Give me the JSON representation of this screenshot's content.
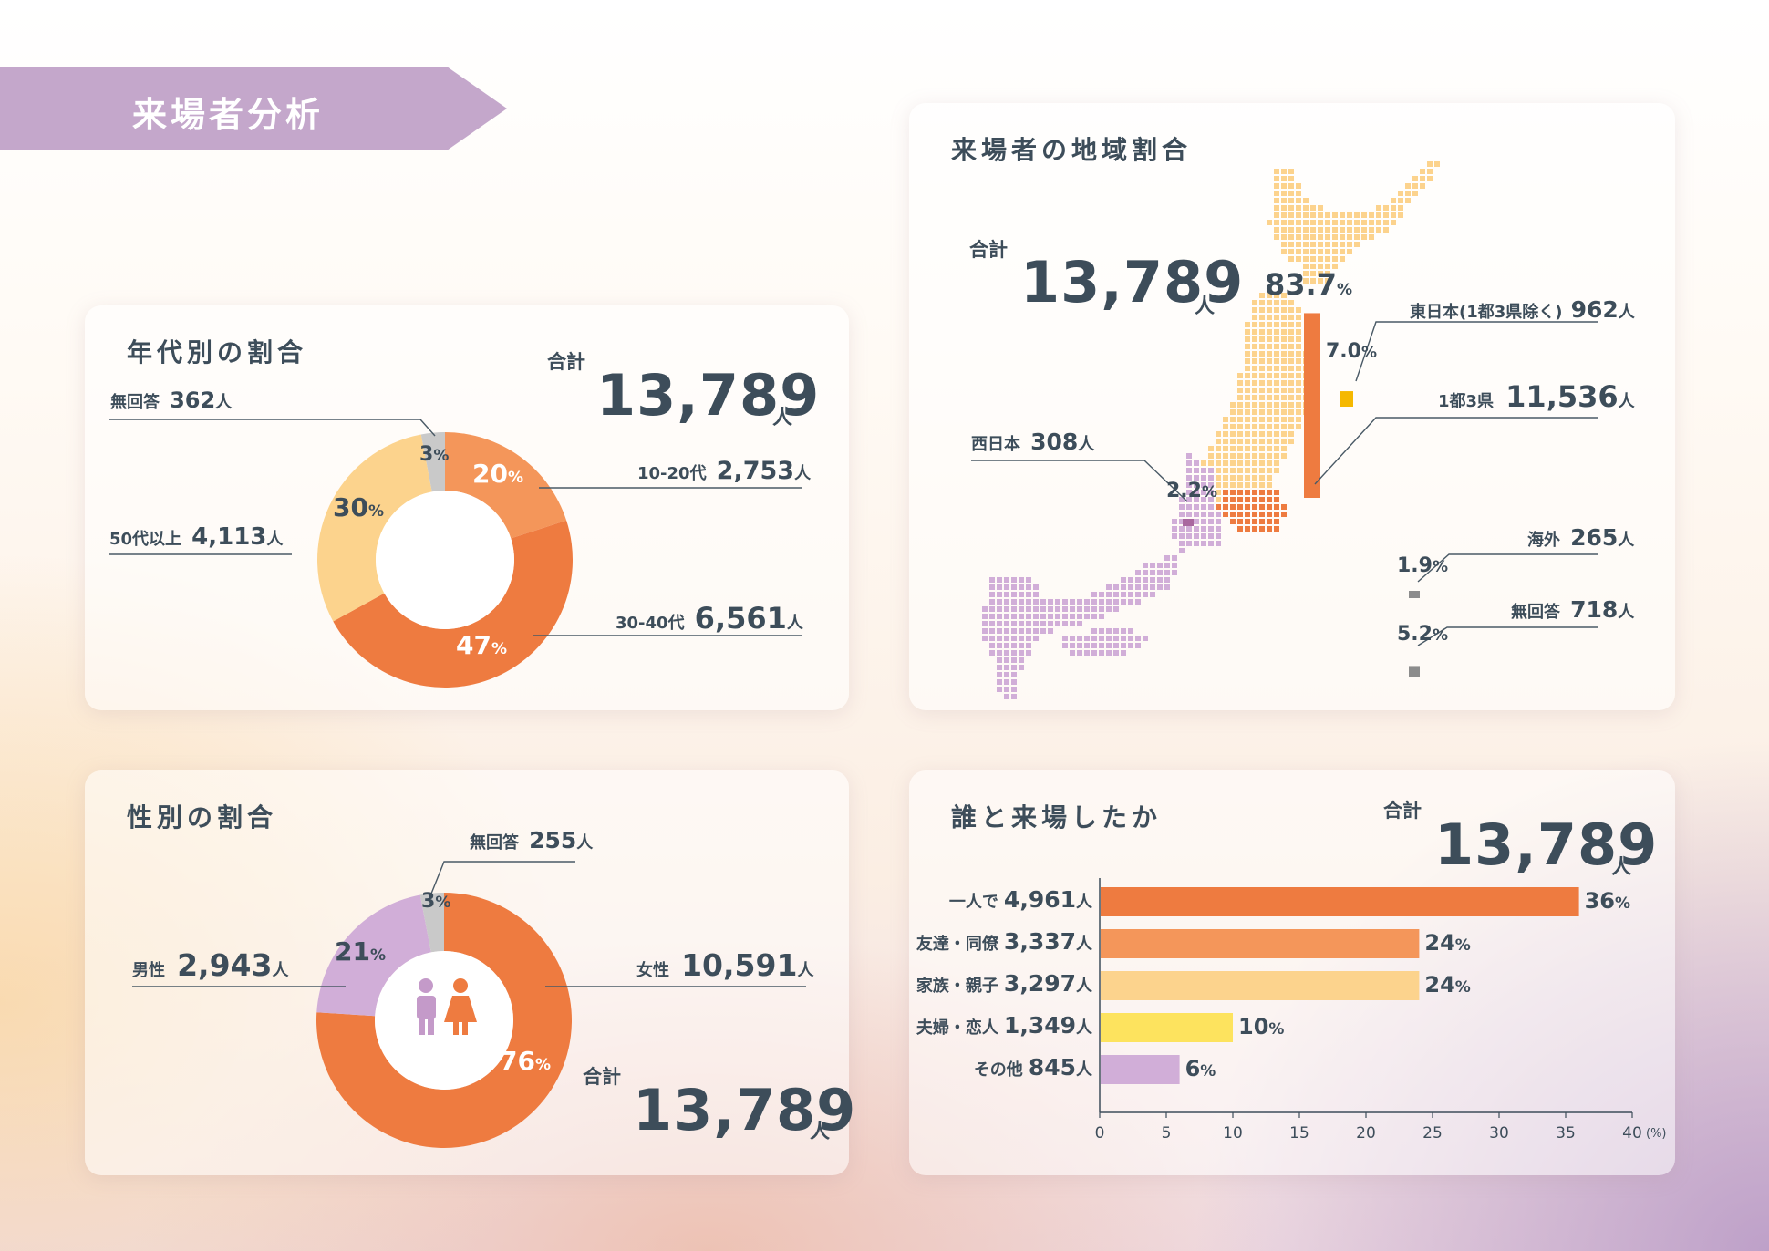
{
  "banner": {
    "title": "来場者分析"
  },
  "colors": {
    "orange_dark": "#ee7b40",
    "orange_light": "#f4965a",
    "peach": "#fcd38d",
    "yellow": "#fde35e",
    "lavender": "#d1aed8",
    "gray": "#c9c9c9",
    "map_gray": "#8c8c8c",
    "banner": "#c4a7cb",
    "text": "#3d4d5a"
  },
  "age": {
    "title": "年代別の割合",
    "total_label": "合計",
    "total_value": "13,789",
    "total_unit": "人",
    "items": [
      {
        "label": "10-20代",
        "count": "2,753",
        "unit": "人",
        "pct": "20",
        "pct_sign": "%"
      },
      {
        "label": "30-40代",
        "count": "6,561",
        "unit": "人",
        "pct": "47",
        "pct_sign": "%"
      },
      {
        "label": "50代以上",
        "count": "4,113",
        "unit": "人",
        "pct": "30",
        "pct_sign": "%"
      },
      {
        "label": "無回答",
        "count": "362",
        "unit": "人",
        "pct": "3",
        "pct_sign": "%"
      }
    ]
  },
  "gender": {
    "title": "性別の割合",
    "total_label": "合計",
    "total_value": "13,789",
    "total_unit": "人",
    "items": [
      {
        "label": "女性",
        "count": "10,591",
        "unit": "人",
        "pct": "76",
        "pct_sign": "%"
      },
      {
        "label": "男性",
        "count": "2,943",
        "unit": "人",
        "pct": "21",
        "pct_sign": "%"
      },
      {
        "label": "無回答",
        "count": "255",
        "unit": "人",
        "pct": "3",
        "pct_sign": "%"
      }
    ]
  },
  "region": {
    "title": "来場者の地域割合",
    "total_label": "合計",
    "total_value": "13,789",
    "total_unit": "人",
    "items": [
      {
        "label": "1都3県",
        "count": "11,536",
        "unit": "人",
        "pct": "83.7",
        "pct_sign": "%"
      },
      {
        "label": "東日本(1都3県除く)",
        "count": "962",
        "unit": "人",
        "pct": "7.0",
        "pct_sign": "%"
      },
      {
        "label": "西日本",
        "count": "308",
        "unit": "人",
        "pct": "2.2",
        "pct_sign": "%"
      },
      {
        "label": "海外",
        "count": "265",
        "unit": "人",
        "pct": "1.9",
        "pct_sign": "%"
      },
      {
        "label": "無回答",
        "count": "718",
        "unit": "人",
        "pct": "5.2",
        "pct_sign": "%"
      }
    ]
  },
  "companion": {
    "title": "誰と来場したか",
    "total_label": "合計",
    "total_value": "13,789",
    "total_unit": "人",
    "axis_unit": "(%)",
    "rows": [
      {
        "label": "一人で",
        "count": "4,961",
        "unit": "人",
        "pct": "36",
        "pct_sign": "%"
      },
      {
        "label": "友達・同僚",
        "count": "3,337",
        "unit": "人",
        "pct": "24",
        "pct_sign": "%"
      },
      {
        "label": "家族・親子",
        "count": "3,297",
        "unit": "人",
        "pct": "24",
        "pct_sign": "%"
      },
      {
        "label": "夫婦・恋人",
        "count": "1,349",
        "unit": "人",
        "pct": "10",
        "pct_sign": "%"
      },
      {
        "label": "その他",
        "count": "845",
        "unit": "人",
        "pct": "6",
        "pct_sign": "%"
      }
    ]
  },
  "chart_data": [
    {
      "type": "pie",
      "title": "年代別の割合",
      "categories": [
        "10-20代",
        "30-40代",
        "50代以上",
        "無回答"
      ],
      "values": [
        20,
        47,
        30,
        3
      ],
      "counts": [
        2753,
        6561,
        4113,
        362
      ],
      "colors": [
        "#f4965a",
        "#ee7b40",
        "#fcd38d",
        "#c9c9c9"
      ]
    },
    {
      "type": "pie",
      "title": "性別の割合",
      "categories": [
        "女性",
        "男性",
        "無回答"
      ],
      "values": [
        76,
        21,
        3
      ],
      "counts": [
        10591,
        2943,
        255
      ],
      "colors": [
        "#ee7b40",
        "#d1aed8",
        "#c9c9c9"
      ]
    },
    {
      "type": "bar",
      "title": "来場者の地域割合",
      "categories": [
        "1都3県",
        "東日本(1都3県除く)",
        "西日本",
        "海外",
        "無回答"
      ],
      "values": [
        83.7,
        7.0,
        2.2,
        1.9,
        5.2
      ],
      "counts": [
        11536,
        962,
        308,
        265,
        718
      ],
      "colors": [
        "#ee7b40",
        "#f5b800",
        "#a9679f",
        "#8c8c8c",
        "#8c8c8c"
      ]
    },
    {
      "type": "bar",
      "orientation": "horizontal",
      "title": "誰と来場したか",
      "categories": [
        "一人で",
        "友達・同僚",
        "家族・親子",
        "夫婦・恋人",
        "その他"
      ],
      "values": [
        36,
        24,
        24,
        10,
        6
      ],
      "counts": [
        4961,
        3337,
        3297,
        1349,
        845
      ],
      "xlim": [
        0,
        40
      ],
      "xticks": [
        0,
        5,
        10,
        15,
        20,
        25,
        30,
        35,
        40
      ],
      "xlabel": "(%)",
      "colors": [
        "#ee7b40",
        "#f4965a",
        "#fcd38d",
        "#fde35e",
        "#d1aed8"
      ]
    }
  ]
}
